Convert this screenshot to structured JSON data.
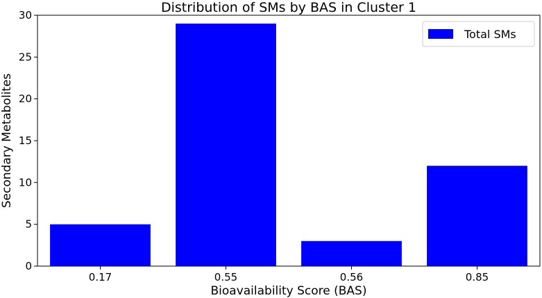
{
  "chart_data": {
    "type": "bar",
    "title": "Distribution of SMs by BAS in Cluster 1",
    "xlabel": "Bioavailability Score (BAS)",
    "ylabel": "Secondary Metabolites",
    "categories": [
      "0.17",
      "0.55",
      "0.56",
      "0.85"
    ],
    "series": [
      {
        "name": "Total SMs",
        "values": [
          5,
          29,
          3,
          12
        ],
        "color": "#0000ff"
      }
    ],
    "ylim": [
      0,
      30
    ],
    "yticks": [
      0,
      5,
      10,
      15,
      20,
      25,
      30
    ],
    "grid": false,
    "legend_position": "top-right"
  }
}
